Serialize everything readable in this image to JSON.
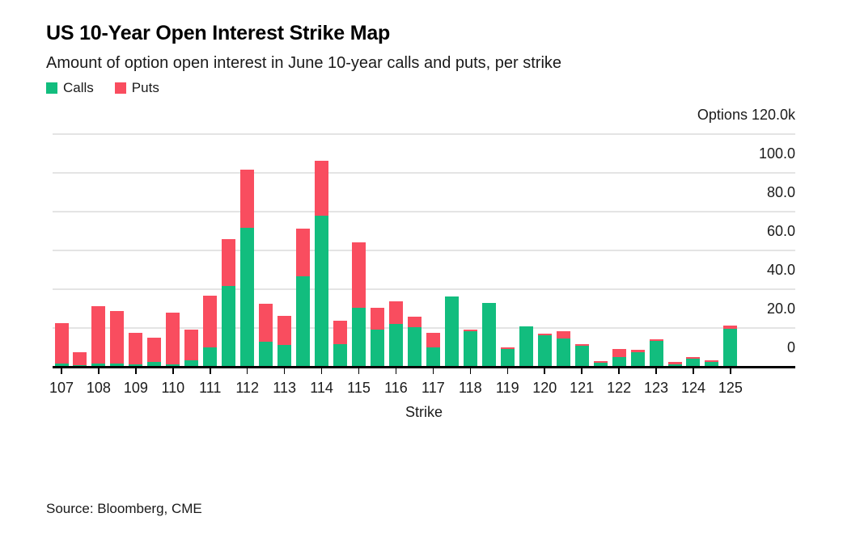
{
  "header": {
    "title": "US 10-Year Open Interest Strike Map",
    "subtitle": "Amount of option open interest in June 10-year calls and puts, per strike"
  },
  "legend": {
    "calls_label": "Calls",
    "puts_label": "Puts"
  },
  "footer": {
    "source": "Source: Bloomberg, CME"
  },
  "colors": {
    "calls_green": "#12bd7e",
    "puts_red": "#f94d5f",
    "gridline": "#e4e4e4",
    "axis": "#000000",
    "text": "#1a1a1a"
  },
  "chart_data": {
    "type": "bar",
    "stacked": true,
    "title": "US 10-Year Open Interest Strike Map",
    "subtitle": "Amount of option open interest in June 10-year calls and puts, per strike",
    "xlabel": "Strike",
    "ylabel": "Options (thousands)",
    "unit": "k",
    "ylim": [
      0,
      120
    ],
    "grid": true,
    "legend_position": "top-left",
    "y_axis": {
      "ticks": [
        {
          "value": 120,
          "label": "Options 120.0k"
        },
        {
          "value": 100,
          "label": "100.0"
        },
        {
          "value": 80,
          "label": "80.0"
        },
        {
          "value": 60,
          "label": "60.0"
        },
        {
          "value": 40,
          "label": "40.0"
        },
        {
          "value": 20,
          "label": "20.0"
        },
        {
          "value": 0,
          "label": "0"
        }
      ]
    },
    "x_axis": {
      "min": 107,
      "max": 125,
      "step": 0.5,
      "tick_labels": [
        "107",
        "108",
        "109",
        "110",
        "111",
        "112",
        "113",
        "114",
        "115",
        "116",
        "117",
        "118",
        "119",
        "120",
        "121",
        "122",
        "123",
        "124",
        "125"
      ]
    },
    "strikes": [
      107,
      107.5,
      108,
      108.5,
      109,
      109.5,
      110,
      110.5,
      111,
      111.5,
      112,
      112.5,
      113,
      113.5,
      114,
      114.5,
      115,
      115.5,
      116,
      116.5,
      117,
      117.5,
      118,
      118.5,
      119,
      119.5,
      120,
      120.5,
      121,
      121.5,
      122,
      122.5,
      123,
      123.5,
      124,
      124.5,
      125
    ],
    "series": [
      {
        "name": "Calls",
        "color": "#12bd7e",
        "values": [
          1.4,
          0.4,
          1.2,
          1.2,
          0.8,
          2.2,
          1.0,
          3.0,
          9.4,
          41.3,
          71.2,
          12.5,
          10.9,
          46.3,
          77.6,
          11.4,
          29.9,
          18.8,
          21.8,
          20.2,
          9.5,
          35.9,
          17.8,
          32.7,
          8.6,
          20.4,
          15.8,
          14.2,
          10.4,
          1.5,
          4.5,
          7.2,
          13.0,
          0.7,
          3.8,
          2.0,
          19.2
        ]
      },
      {
        "name": "Puts",
        "color": "#f94d5f",
        "values": [
          20.6,
          6.5,
          29.7,
          27.3,
          16.3,
          12.4,
          26.5,
          15.8,
          27.0,
          24.4,
          30.4,
          19.5,
          14.8,
          24.6,
          28.5,
          11.8,
          34.1,
          11.4,
          11.6,
          5.2,
          7.5,
          0,
          1.0,
          0,
          1.1,
          0,
          1.0,
          3.9,
          0.7,
          0.8,
          4.4,
          1.2,
          0.9,
          1.2,
          0.8,
          1.0,
          1.7
        ]
      }
    ]
  }
}
